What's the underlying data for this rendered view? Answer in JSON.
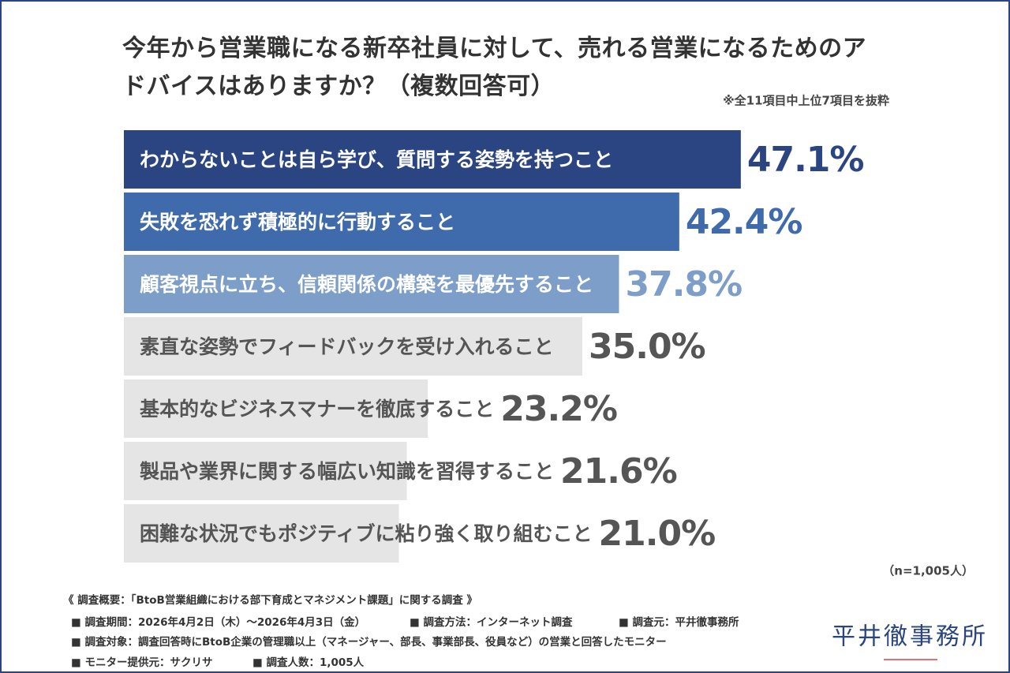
{
  "chart_data": {
    "type": "bar",
    "orientation": "horizontal",
    "title": "今年から営業職になる新卒社員に対して、売れる営業になるためのアドバイスはありますか？（複数回答可）",
    "note": "※全11項目中上位7項目を抜粋",
    "categories": [
      "わからないことは自ら学び、質問する姿勢を持つこと",
      "失敗を恐れず積極的に行動すること",
      "顧客視点に立ち、信頼関係の構築を最優先すること",
      "素直な姿勢でフィードバックを受け入れること",
      "基本的なビジネスマナーを徹底すること",
      "製品や業界に関する幅広い知識を習得すること",
      "困難な状況でもポジティブに粘り強く取り組むこと"
    ],
    "values": [
      47.1,
      42.4,
      37.8,
      35.0,
      23.2,
      21.6,
      21.0
    ],
    "value_labels": [
      "47.1%",
      "42.4%",
      "37.8%",
      "35.0%",
      "23.2%",
      "21.6%",
      "21.0%"
    ],
    "colors": [
      "#2b4583",
      "#3f6aab",
      "#7c9ec9",
      "#e5e5e5",
      "#e5e5e5",
      "#e5e5e5",
      "#e5e5e5"
    ],
    "label_colors": [
      "#ffffff",
      "#ffffff",
      "#ffffff",
      "#555555",
      "#555555",
      "#555555",
      "#555555"
    ],
    "value_colors": [
      "#2b4583",
      "#3f6aab",
      "#7c9ec9",
      "#555555",
      "#555555",
      "#555555",
      "#555555"
    ],
    "sample_size": "（n=1,005人）",
    "footnotes": [
      [
        "《 調査概要：「BtoB営業組織における部下育成とマネジメント課題」に関する調査 》"
      ],
      [
        "■ 調査期間：2026年4月2日（木）～2026年4月3日（金）",
        "■ 調査方法：インターネット調査",
        "■ 調査元：平井徹事務所"
      ],
      [
        "■ 調査対象：調査回答時にBtoB企業の管理職以上（マネージャー、部長、事業部長、役員など）の営業と回答したモニター"
      ],
      [
        "■ モニター提供元：サクリサ",
        "■ 調査人数：1,005人"
      ]
    ],
    "logo": "平井徹事務所"
  }
}
